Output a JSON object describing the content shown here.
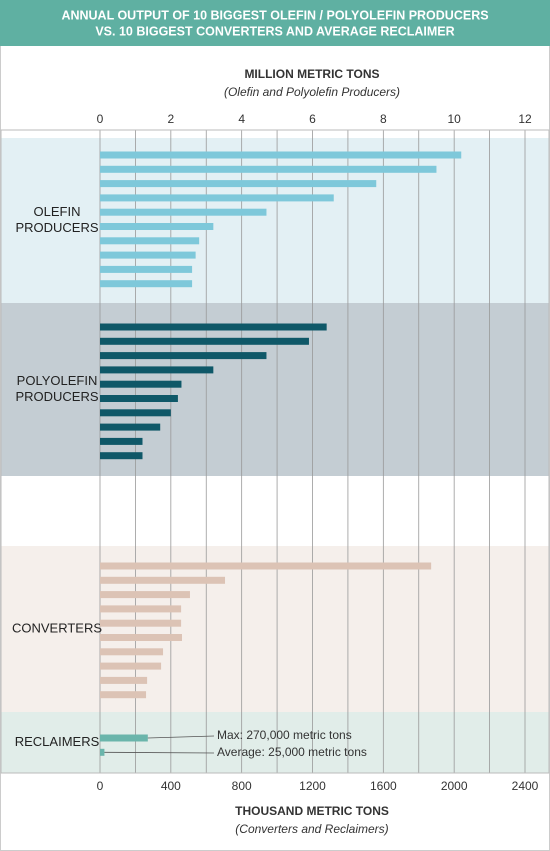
{
  "chart_data": {
    "type": "grouped-hbar",
    "title": [
      "ANNUAL OUTPUT OF 10 BIGGEST OLEFIN / POLYOLEFIN PRODUCERS",
      "VS. 10 BIGGEST CONVERTERS AND AVERAGE RECLAIMER"
    ],
    "xlabel": "MILLION METRIC TONS",
    "xsublabel": "(Olefin and Polyolefin Producers)",
    "x2label": "THOUSAND METRIC TONS",
    "x2sublabel": "(Converters and Reclaimers)",
    "xlim": [
      0,
      12
    ],
    "xticks": [
      0,
      2,
      4,
      6,
      8,
      10,
      12
    ],
    "xgrid": [
      0,
      1,
      2,
      3,
      4,
      5,
      6,
      7,
      8,
      9,
      10,
      11,
      12
    ],
    "x2lim": [
      0,
      2400
    ],
    "x2ticks": [
      0,
      400,
      800,
      1200,
      1600,
      2000,
      2400
    ],
    "groups": [
      {
        "name": [
          "OLEFIN",
          "PRODUCERS"
        ],
        "axis": "x",
        "color": "#7ec8da",
        "background": "#e3f0f4",
        "values": [
          10.2,
          9.5,
          7.8,
          6.6,
          4.7,
          3.2,
          2.8,
          2.7,
          2.6,
          2.6
        ]
      },
      {
        "name": [
          "POLYOLEFIN",
          "PRODUCERS"
        ],
        "axis": "x",
        "color": "#0f5868",
        "background": "#c4cdd3",
        "values": [
          6.4,
          5.9,
          4.7,
          3.2,
          2.3,
          2.2,
          2.0,
          1.7,
          1.2,
          1.2
        ]
      },
      {
        "name": [
          "CONVERTERS"
        ],
        "axis": "x2",
        "color": "#dcc3b5",
        "background": "#f5efeb",
        "values": [
          1870,
          706,
          508,
          458,
          458,
          463,
          356,
          345,
          266,
          260
        ]
      },
      {
        "name": [
          "RECLAIMERS"
        ],
        "axis": "x2",
        "color": "#6ab5ab",
        "background": "#e1ede9",
        "values": [
          270,
          25
        ],
        "value_labels": [
          "Max: 270,000 metric tons",
          "Average: 25,000 metric tons"
        ]
      }
    ]
  }
}
